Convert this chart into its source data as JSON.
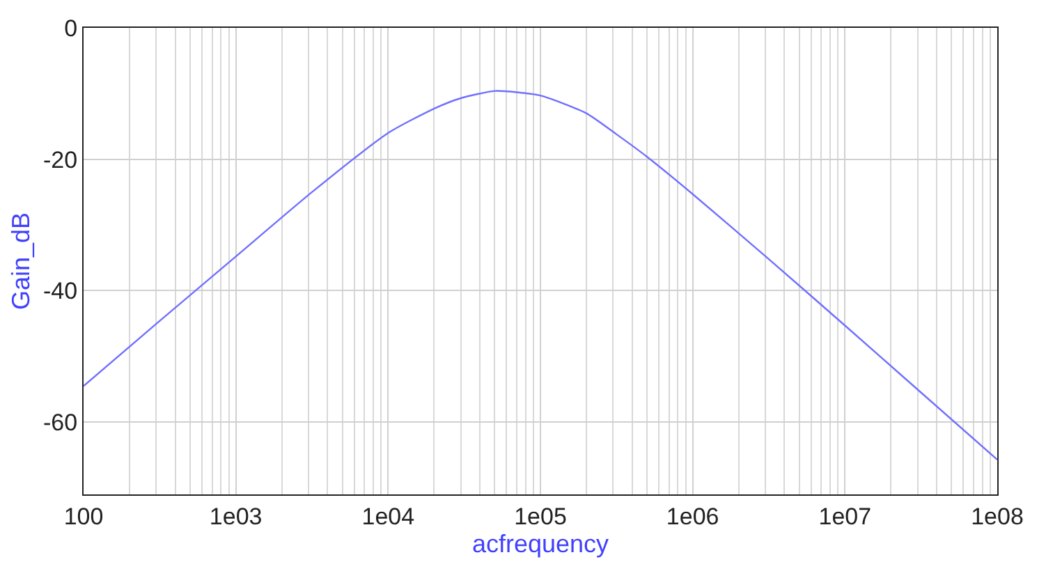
{
  "chart_data": {
    "type": "line",
    "xlabel": "acfrequency",
    "ylabel": "Gain_dB",
    "log": "x",
    "grid": true,
    "marker": "none",
    "line_style": "solid",
    "xlim": [
      100,
      100000000
    ],
    "xticks": [
      100,
      {
        "value": 1000,
        "label": "1e03"
      },
      {
        "value": 10000,
        "label": "1e04"
      },
      {
        "value": 100000,
        "label": "1e05"
      },
      {
        "value": 1000000,
        "label": "1e06"
      },
      {
        "value": 10000000,
        "label": "1e07"
      },
      {
        "value": 100000000,
        "label": "1e08"
      }
    ],
    "ylim": [
      -71,
      0
    ],
    "yticks": [
      0,
      -20,
      -40,
      -60
    ],
    "x": [
      100,
      316,
      1000,
      3160,
      10000,
      20000,
      30000,
      50000,
      70000,
      100000,
      200000,
      316000,
      500000,
      1000000,
      3160000,
      10000000,
      31600000,
      100000000
    ],
    "series": [
      {
        "color": "#7070ff",
        "values": [
          -54.5,
          -44.6,
          -34.8,
          -25,
          -16,
          -12.3,
          -10.7,
          -9.6,
          -9.8,
          -10.3,
          -13,
          -16.2,
          -19.6,
          -25.3,
          -35.2,
          -45.3,
          -55.5,
          -65.7
        ]
      }
    ]
  }
}
